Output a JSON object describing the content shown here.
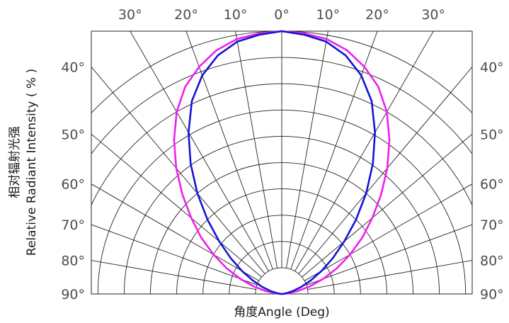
{
  "chart_data": {
    "type": "polar-radiation-pattern",
    "xlabel": "角度Angle (Deg)",
    "ylabel_lines": [
      "相对辐射光强",
      "Relative Radiant Intensity ( % )"
    ],
    "top_tick_labels": [
      "30°",
      "20°",
      "10°",
      "0°",
      "10°",
      "20°",
      "30°"
    ],
    "top_tick_angles": [
      -30,
      -20,
      -10,
      0,
      10,
      20,
      30
    ],
    "side_tick_labels": [
      "40°",
      "50°",
      "60°",
      "70°",
      "80°",
      "90°"
    ],
    "side_tick_angles": [
      40,
      50,
      60,
      70,
      80,
      90
    ],
    "radial_grid_fractions": [
      0.1,
      0.2,
      0.3,
      0.4,
      0.5,
      0.6,
      0.7,
      0.8,
      0.9,
      1.0
    ],
    "spoke_step_deg": 10,
    "series": [
      {
        "color": "#ee1fee",
        "angles_deg": [
          0,
          5,
          10,
          15,
          20,
          25,
          30,
          35,
          40,
          45,
          50,
          55,
          60,
          65,
          70,
          75,
          80,
          85,
          90
        ],
        "relative_intensity": [
          1.0,
          0.995,
          0.985,
          0.96,
          0.92,
          0.87,
          0.8,
          0.715,
          0.625,
          0.535,
          0.45,
          0.375,
          0.3,
          0.232,
          0.168,
          0.11,
          0.06,
          0.022,
          0.0
        ]
      },
      {
        "color": "#1414d6",
        "angles_deg": [
          0,
          5,
          10,
          15,
          20,
          25,
          30,
          35,
          40,
          45,
          50,
          55,
          60,
          65,
          70,
          75,
          80,
          85,
          90
        ],
        "relative_intensity": [
          1.0,
          0.99,
          0.975,
          0.94,
          0.885,
          0.81,
          0.71,
          0.605,
          0.5,
          0.4,
          0.31,
          0.237,
          0.175,
          0.122,
          0.08,
          0.046,
          0.02,
          0.006,
          0.0
        ]
      }
    ]
  }
}
